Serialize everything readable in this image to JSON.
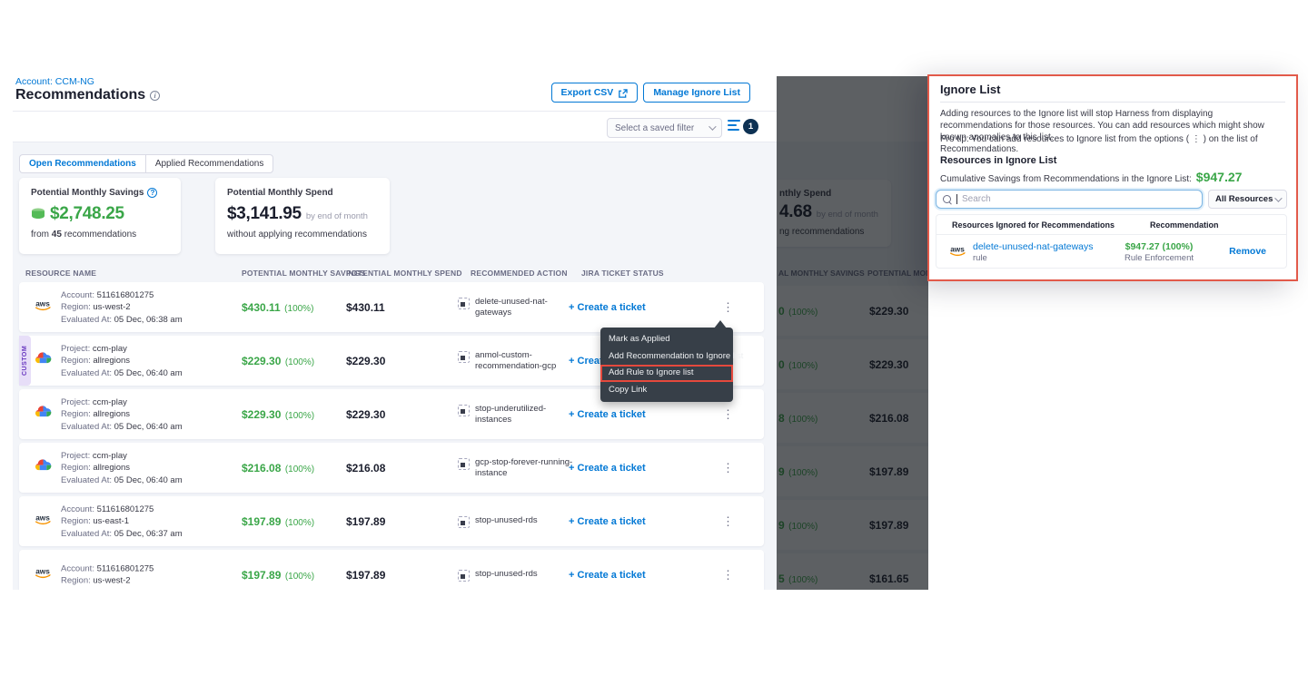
{
  "colors": {
    "accent_blue": "#0278d5",
    "savings_green": "#3aa648",
    "annotation_red": "#e25a4a",
    "menu_bg": "#373f48",
    "badge_navy": "#0d3153"
  },
  "recommendations_page": {
    "breadcrumb": "Account: CCM-NG",
    "title": "Recommendations",
    "export_csv_label": "Export CSV",
    "manage_ignore_list_label": "Manage Ignore List",
    "saved_filter_placeholder": "Select a saved filter",
    "filter_badge_count": "1",
    "tabs": [
      {
        "label": "Open Recommendations",
        "active": true
      },
      {
        "label": "Applied Recommendations",
        "active": false
      }
    ],
    "savings_card": {
      "title": "Potential Monthly Savings",
      "amount": "$2,748.25",
      "sub_prefix": "from",
      "sub_count": "45",
      "sub_suffix": "recommendations"
    },
    "spend_card": {
      "title": "Potential Monthly Spend",
      "amount": "$3,141.95",
      "amount_suffix": "by end of month",
      "sub": "without applying recommendations"
    },
    "table_headers": [
      "RESOURCE NAME",
      "POTENTIAL MONTHLY SAVINGS",
      "POTENTIAL MONTHLY SPEND",
      "RECOMMENDED ACTION",
      "JIRA TICKET STATUS"
    ],
    "create_ticket_label": "Create a ticket",
    "rows": [
      {
        "provider": "aws",
        "tag": "",
        "lines": [
          [
            "Account:",
            "511616801275"
          ],
          [
            "Region:",
            "us-west-2"
          ],
          [
            "Evaluated At:",
            "05 Dec, 06:38 am"
          ]
        ],
        "savings": "$430.11",
        "savings_pct": "(100%)",
        "spend": "$430.11",
        "action": "delete-unused-nat-gateways"
      },
      {
        "provider": "gcp",
        "tag": "CUSTOM",
        "lines": [
          [
            "Project:",
            "ccm-play"
          ],
          [
            "Region:",
            "allregions"
          ],
          [
            "Evaluated At:",
            "05 Dec, 06:40 am"
          ]
        ],
        "savings": "$229.30",
        "savings_pct": "(100%)",
        "spend": "$229.30",
        "action": "anmol-custom-recommendation-gcp"
      },
      {
        "provider": "gcp",
        "tag": "",
        "lines": [
          [
            "Project:",
            "ccm-play"
          ],
          [
            "Region:",
            "allregions"
          ],
          [
            "Evaluated At:",
            "05 Dec, 06:40 am"
          ]
        ],
        "savings": "$229.30",
        "savings_pct": "(100%)",
        "spend": "$229.30",
        "action": "stop-underutilized-instances"
      },
      {
        "provider": "gcp",
        "tag": "",
        "lines": [
          [
            "Project:",
            "ccm-play"
          ],
          [
            "Region:",
            "allregions"
          ],
          [
            "Evaluated At:",
            "05 Dec, 06:40 am"
          ]
        ],
        "savings": "$216.08",
        "savings_pct": "(100%)",
        "spend": "$216.08",
        "action": "gcp-stop-forever-running-instance"
      },
      {
        "provider": "aws",
        "tag": "",
        "lines": [
          [
            "Account:",
            "511616801275"
          ],
          [
            "Region:",
            "us-east-1"
          ],
          [
            "Evaluated At:",
            "05 Dec, 06:37 am"
          ]
        ],
        "savings": "$197.89",
        "savings_pct": "(100%)",
        "spend": "$197.89",
        "action": "stop-unused-rds"
      },
      {
        "provider": "aws",
        "tag": "",
        "lines": [
          [
            "Account:",
            "511616801275"
          ],
          [
            "Region:",
            "us-west-2"
          ]
        ],
        "savings": "$197.89",
        "savings_pct": "(100%)",
        "spend": "$197.89",
        "action": "stop-unused-rds"
      }
    ],
    "context_menu": {
      "items": [
        "Mark as Applied",
        "Add Recommendation to Ignore list",
        "Add Rule to Ignore list",
        "Copy Link"
      ],
      "highlighted_index": 2
    }
  },
  "dimmed_screenshot": {
    "spend_card_fragment": {
      "title": "nthly Spend",
      "amount": "4.68",
      "amount_suffix": "by end of month",
      "sub": "ng recommendations"
    },
    "header_fragments": [
      "AL MONTHLY SAVINGS",
      "POTENTIAL MONTHL"
    ],
    "rows": [
      {
        "savings_fragment": "0",
        "pct": "(100%)",
        "spend": "$229.30"
      },
      {
        "savings_fragment": "0",
        "pct": "(100%)",
        "spend": "$229.30"
      },
      {
        "savings_fragment": "8",
        "pct": "(100%)",
        "spend": "$216.08"
      },
      {
        "savings_fragment": "9",
        "pct": "(100%)",
        "spend": "$197.89"
      },
      {
        "savings_fragment": "9",
        "pct": "(100%)",
        "spend": "$197.89"
      },
      {
        "savings_fragment": "5",
        "pct": "(100%)",
        "spend": "$161.65"
      }
    ]
  },
  "ignore_panel": {
    "title": "Ignore List",
    "description": "Adding resources to the Ignore list will stop Harness from displaying recommendations for those resources. You can add resources which might show known anomalies to this list.",
    "protip_before": "Pro tip: You can add resources to Ignore list from the options (",
    "protip_icon": "⋮",
    "protip_after": ") on the list of Recommendations.",
    "section_title": "Resources in Ignore List",
    "cumulative_label": "Cumulative Savings from Recommendations in the Ignore List:",
    "cumulative_amount": "$947.27",
    "search_placeholder": "Search",
    "resource_filter_value": "All Resources",
    "table_headers": [
      "Resources Ignored for Recommendations",
      "Recommendation"
    ],
    "row": {
      "name": "delete-unused-nat-gateways",
      "type": "rule",
      "amount": "$947.27 (100%)",
      "sub": "Rule Enforcement",
      "action": "Remove"
    }
  }
}
